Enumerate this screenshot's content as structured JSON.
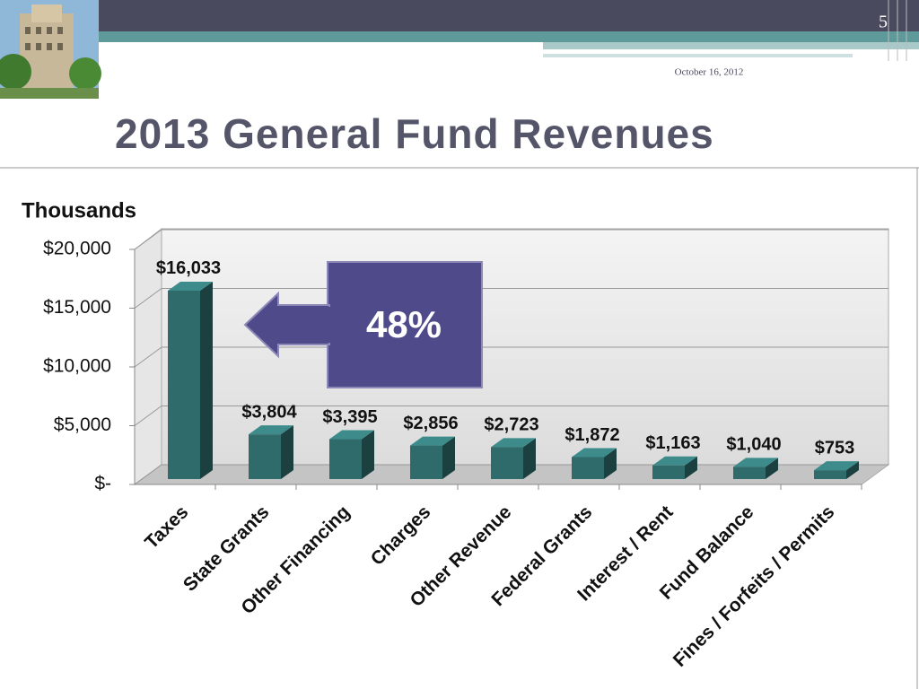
{
  "slide_number": "5",
  "date": "October 16, 2012",
  "chart_data": {
    "type": "bar",
    "title": "2013 General Fund Revenues",
    "y_axis_title": "Thousands",
    "annotation": "48%",
    "categories": [
      "Taxes",
      "State Grants",
      "Other Financing",
      "Charges",
      "Other Revenue",
      "Federal Grants",
      "Interest / Rent",
      "Fund Balance",
      "Fines / Forfeits / Permits"
    ],
    "values": [
      16033,
      3804,
      3395,
      2856,
      2723,
      1872,
      1163,
      1040,
      753
    ],
    "value_labels": [
      "$16,033",
      "$3,804",
      "$3,395",
      "$2,856",
      "$2,723",
      "$1,872",
      "$1,163",
      "$1,040",
      "$753"
    ],
    "color": "#2f6b6b",
    "ylim": [
      0,
      20000
    ],
    "yticks": [
      {
        "value": 0,
        "label": "$-"
      },
      {
        "value": 5000,
        "label": "$5,000"
      },
      {
        "value": 10000,
        "label": "$10,000"
      },
      {
        "value": 15000,
        "label": "$15,000"
      },
      {
        "value": 20000,
        "label": "$20,000"
      }
    ],
    "grid": true
  }
}
